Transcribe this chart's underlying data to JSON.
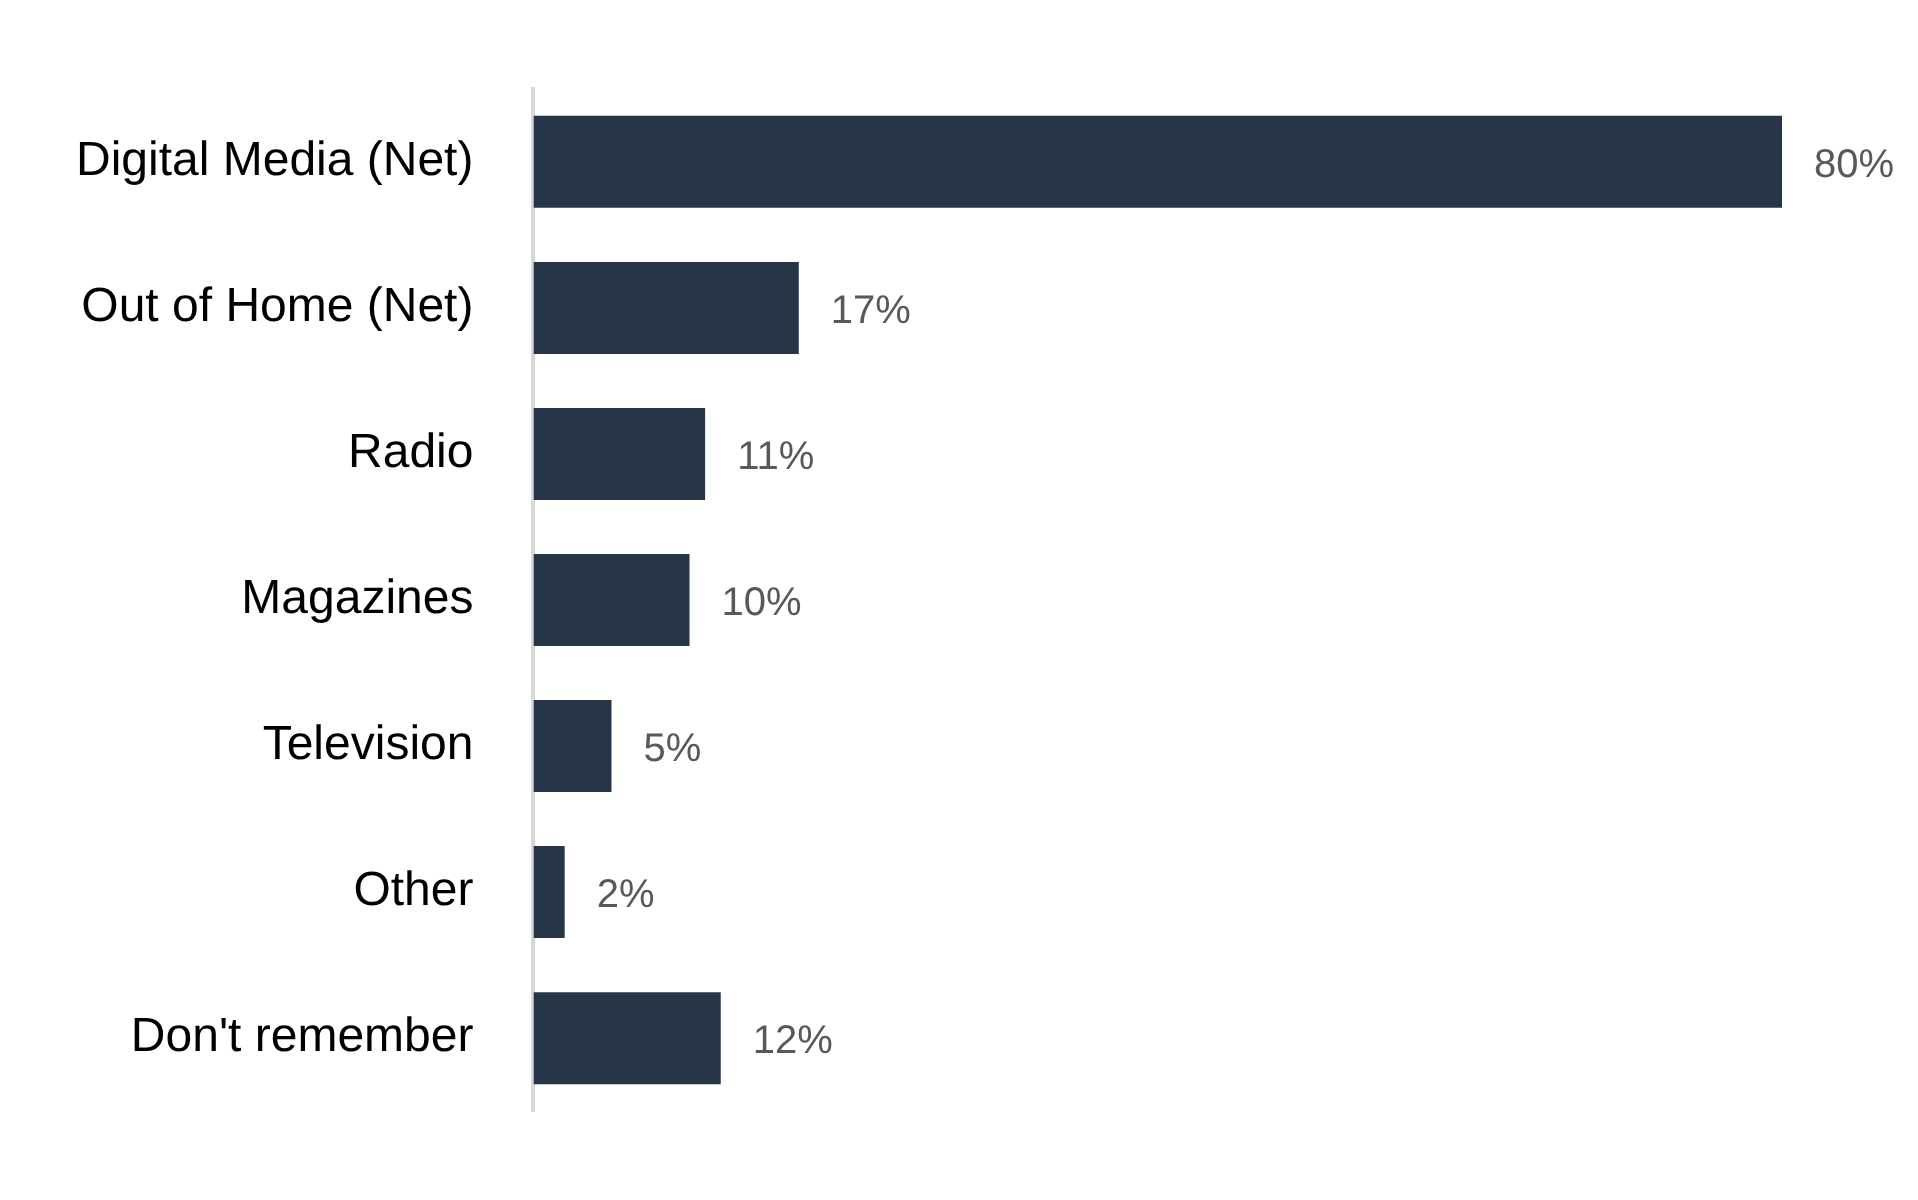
{
  "chart_data": {
    "type": "bar",
    "orientation": "horizontal",
    "categories": [
      "Digital Media (Net)",
      "Out of Home (Net)",
      "Radio",
      "Magazines",
      "Television",
      "Other",
      "Don't remember"
    ],
    "values": [
      80,
      17,
      11,
      10,
      5,
      2,
      12
    ],
    "value_labels": [
      "80%",
      "17%",
      "11%",
      "10%",
      "5%",
      "2%",
      "12%"
    ],
    "color": "#263548"
  }
}
